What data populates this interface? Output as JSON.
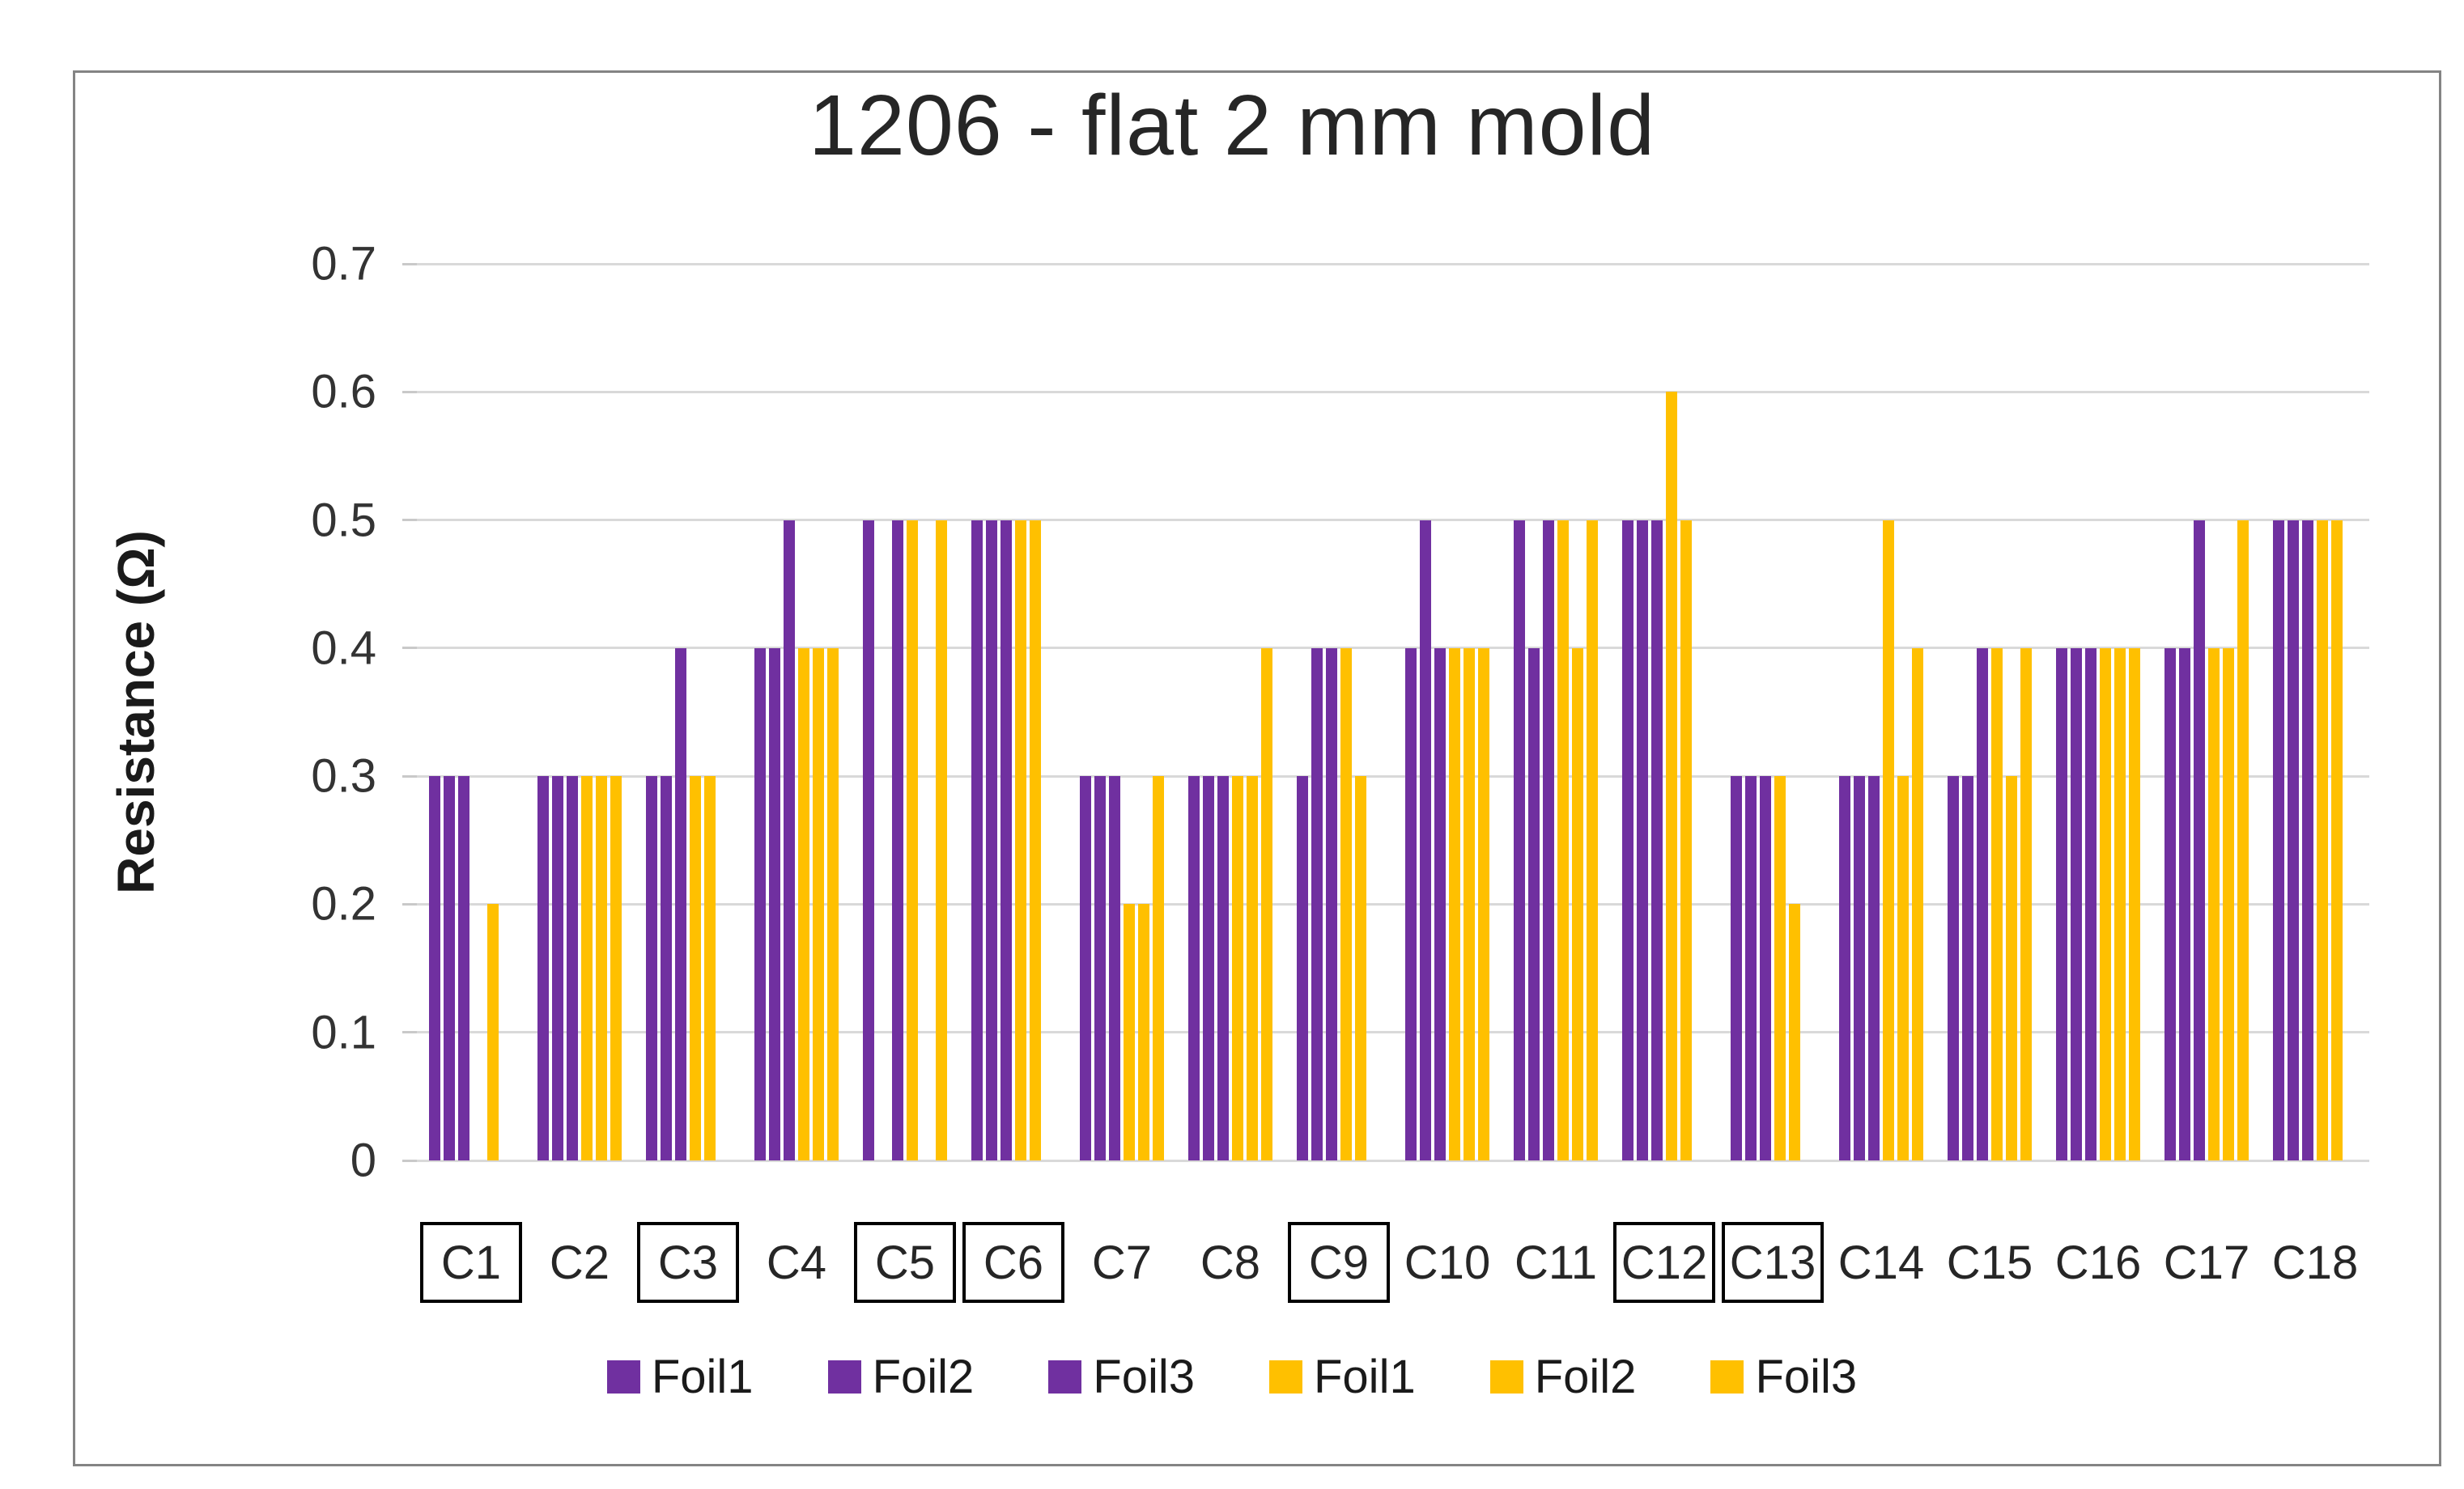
{
  "figure": {
    "title": "1206 - flat 2 mm mold"
  },
  "chart_data": {
    "type": "bar",
    "title": "1206 - flat 2 mm mold",
    "xlabel": "",
    "ylabel": "Resistance (Ω)",
    "ylim": [
      0,
      0.7
    ],
    "yticks": [
      "0",
      "0.1",
      "0.2",
      "0.3",
      "0.4",
      "0.5",
      "0.6",
      "0.7"
    ],
    "grid": true,
    "legend_position": "bottom",
    "categories": [
      "C1",
      "C2",
      "C3",
      "C4",
      "C5",
      "C6",
      "C7",
      "C8",
      "C9",
      "C10",
      "C11",
      "C12",
      "C13",
      "C14",
      "C15",
      "C16",
      "C17",
      "C18"
    ],
    "boxed_categories": [
      "C1",
      "C3",
      "C5",
      "C6",
      "C9",
      "C12",
      "C13"
    ],
    "palette": {
      "purple": "#7030A0",
      "yellow": "#FFC000"
    },
    "series": [
      {
        "name": "Foil1",
        "color": "purple",
        "values": [
          0.3,
          0.3,
          0.3,
          0.4,
          0.5,
          0.5,
          0.3,
          0.3,
          0.3,
          0.4,
          0.5,
          0.5,
          0.3,
          0.3,
          0.3,
          0.4,
          0.4,
          0.5
        ]
      },
      {
        "name": "Foil2",
        "color": "purple",
        "values": [
          0.3,
          0.3,
          0.3,
          0.4,
          0,
          0.5,
          0.3,
          0.3,
          0.4,
          0.5,
          0.4,
          0.5,
          0.3,
          0.3,
          0.3,
          0.4,
          0.4,
          0.5
        ]
      },
      {
        "name": "Foil3",
        "color": "purple",
        "values": [
          0.3,
          0.3,
          0.4,
          0.5,
          0.5,
          0.5,
          0.3,
          0.3,
          0.4,
          0.4,
          0.5,
          0.5,
          0.3,
          0.3,
          0.4,
          0.4,
          0.5,
          0.5
        ]
      },
      {
        "name": "Foil1",
        "color": "yellow",
        "values": [
          0,
          0.3,
          0.3,
          0.4,
          0.5,
          0.5,
          0.2,
          0.3,
          0.4,
          0.4,
          0.5,
          0.6,
          0.3,
          0.5,
          0.4,
          0.4,
          0.4,
          0.5
        ]
      },
      {
        "name": "Foil2",
        "color": "yellow",
        "values": [
          0.2,
          0.3,
          0.3,
          0.4,
          0,
          0.5,
          0.2,
          0.3,
          0.3,
          0.4,
          0.4,
          0.5,
          0.2,
          0.3,
          0.3,
          0.4,
          0.4,
          0.5
        ]
      },
      {
        "name": "Foil3",
        "color": "yellow",
        "values": [
          0,
          0.3,
          0,
          0.4,
          0.5,
          0,
          0.3,
          0.4,
          0,
          0.4,
          0.5,
          0,
          0,
          0.4,
          0.4,
          0.4,
          0.5,
          0
        ]
      }
    ]
  }
}
